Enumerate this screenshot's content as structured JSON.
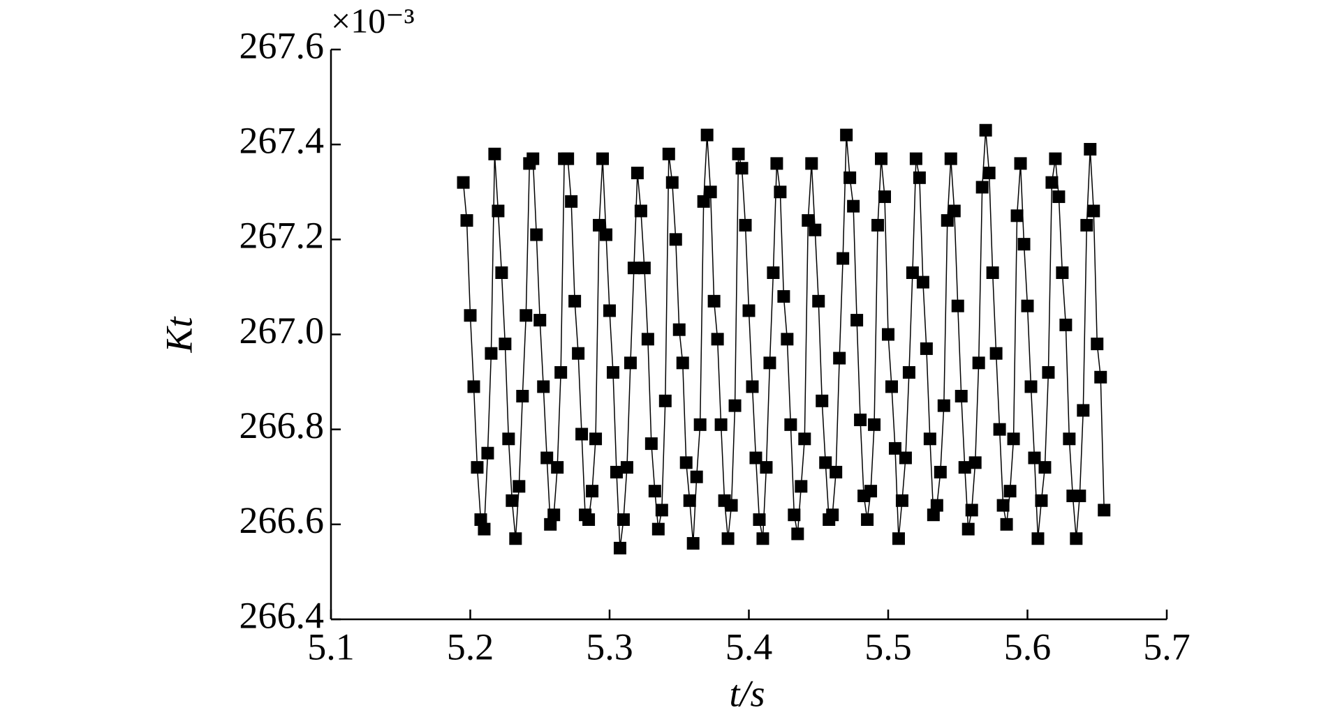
{
  "chart_data": {
    "type": "line",
    "xlabel": "t/s",
    "ylabel": "Kt",
    "axis_multiplier": "×10⁻³",
    "x": [
      5.195,
      5.1975,
      5.2,
      5.2025,
      5.205,
      5.2075,
      5.21,
      5.2125,
      5.215,
      5.2175,
      5.22,
      5.2225,
      5.225,
      5.2275,
      5.23,
      5.2325,
      5.235,
      5.2375,
      5.24,
      5.2425,
      5.245,
      5.2475,
      5.25,
      5.2525,
      5.255,
      5.2575,
      5.26,
      5.2625,
      5.265,
      5.2675,
      5.27,
      5.2725,
      5.275,
      5.2775,
      5.28,
      5.2825,
      5.285,
      5.2875,
      5.29,
      5.2925,
      5.295,
      5.2975,
      5.3,
      5.3025,
      5.305,
      5.3075,
      5.31,
      5.3125,
      5.315,
      5.3175,
      5.32,
      5.3225,
      5.325,
      5.3275,
      5.33,
      5.3325,
      5.335,
      5.3375,
      5.34,
      5.3425,
      5.345,
      5.3475,
      5.35,
      5.3525,
      5.355,
      5.3575,
      5.36,
      5.3625,
      5.365,
      5.3675,
      5.37,
      5.3725,
      5.375,
      5.3775,
      5.38,
      5.3825,
      5.385,
      5.3875,
      5.39,
      5.3925,
      5.395,
      5.3975,
      5.4,
      5.4025,
      5.405,
      5.4075,
      5.41,
      5.4125,
      5.415,
      5.4175,
      5.42,
      5.4225,
      5.425,
      5.4275,
      5.43,
      5.4325,
      5.435,
      5.4375,
      5.44,
      5.4425,
      5.445,
      5.4475,
      5.45,
      5.4525,
      5.455,
      5.4575,
      5.46,
      5.4625,
      5.465,
      5.4675,
      5.47,
      5.4725,
      5.475,
      5.4775,
      5.48,
      5.4825,
      5.485,
      5.4875,
      5.49,
      5.4925,
      5.495,
      5.4975,
      5.5,
      5.5025,
      5.505,
      5.5075,
      5.51,
      5.5125,
      5.515,
      5.5175,
      5.52,
      5.5225,
      5.525,
      5.5275,
      5.53,
      5.5325,
      5.535,
      5.5375,
      5.54,
      5.5425,
      5.545,
      5.5475,
      5.55,
      5.5525,
      5.555,
      5.5575,
      5.56,
      5.5625,
      5.565,
      5.5675,
      5.57,
      5.5725,
      5.575,
      5.5775,
      5.58,
      5.5825,
      5.585,
      5.5875,
      5.59,
      5.5925,
      5.595,
      5.5975,
      5.6,
      5.6025,
      5.605,
      5.6075,
      5.61,
      5.6125,
      5.615,
      5.6175,
      5.62,
      5.6225,
      5.625,
      5.6275,
      5.63,
      5.6325,
      5.635,
      5.6375,
      5.64,
      5.6425,
      5.645,
      5.6475,
      5.65,
      5.6525,
      5.655
    ],
    "series": [
      {
        "color": "#000000",
        "marker": "square",
        "values": [
          267.32,
          267.24,
          267.04,
          266.89,
          266.72,
          266.61,
          266.59,
          266.75,
          266.96,
          267.38,
          267.26,
          267.13,
          266.98,
          266.78,
          266.65,
          266.57,
          266.68,
          266.87,
          267.04,
          267.36,
          267.37,
          267.21,
          267.03,
          266.89,
          266.74,
          266.6,
          266.62,
          266.72,
          266.92,
          267.37,
          267.37,
          267.28,
          267.07,
          266.96,
          266.79,
          266.62,
          266.61,
          266.67,
          266.78,
          267.23,
          267.37,
          267.21,
          267.05,
          266.92,
          266.71,
          266.55,
          266.61,
          266.72,
          266.94,
          267.14,
          267.34,
          267.26,
          267.14,
          266.99,
          266.77,
          266.67,
          266.59,
          266.63,
          266.86,
          267.38,
          267.32,
          267.2,
          267.01,
          266.94,
          266.73,
          266.65,
          266.56,
          266.7,
          266.81,
          267.28,
          267.42,
          267.3,
          267.07,
          266.99,
          266.81,
          266.65,
          266.57,
          266.64,
          266.85,
          267.38,
          267.35,
          267.23,
          267.05,
          266.89,
          266.74,
          266.61,
          266.57,
          266.72,
          266.94,
          267.13,
          267.36,
          267.3,
          267.08,
          266.99,
          266.81,
          266.62,
          266.58,
          266.68,
          266.78,
          267.24,
          267.36,
          267.22,
          267.07,
          266.86,
          266.73,
          266.61,
          266.62,
          266.71,
          266.95,
          267.16,
          267.42,
          267.33,
          267.27,
          267.03,
          266.82,
          266.66,
          266.61,
          266.67,
          266.81,
          267.23,
          267.37,
          267.29,
          267.0,
          266.89,
          266.76,
          266.57,
          266.65,
          266.74,
          266.92,
          267.13,
          267.37,
          267.33,
          267.11,
          266.97,
          266.78,
          266.62,
          266.64,
          266.71,
          266.85,
          267.24,
          267.37,
          267.26,
          267.06,
          266.87,
          266.72,
          266.59,
          266.63,
          266.73,
          266.94,
          267.31,
          267.43,
          267.34,
          267.13,
          266.96,
          266.8,
          266.64,
          266.6,
          266.67,
          266.78,
          267.25,
          267.36,
          267.19,
          267.06,
          266.89,
          266.74,
          266.57,
          266.65,
          266.72,
          266.92,
          267.32,
          267.37,
          267.29,
          267.13,
          267.02,
          266.78,
          266.66,
          266.57,
          266.66,
          266.84,
          267.23,
          267.39,
          267.26,
          266.98,
          266.91,
          266.63
        ]
      }
    ],
    "xlim": [
      5.1,
      5.7
    ],
    "xticks": [
      5.1,
      5.2,
      5.3,
      5.4,
      5.5,
      5.6,
      5.7
    ],
    "ylim": [
      266.4,
      267.6
    ],
    "yticks": [
      266.4,
      266.6,
      266.8,
      {
        "value": 267.0,
        "label": "267.0"
      },
      267.2,
      267.4,
      267.6
    ],
    "grid": false
  }
}
